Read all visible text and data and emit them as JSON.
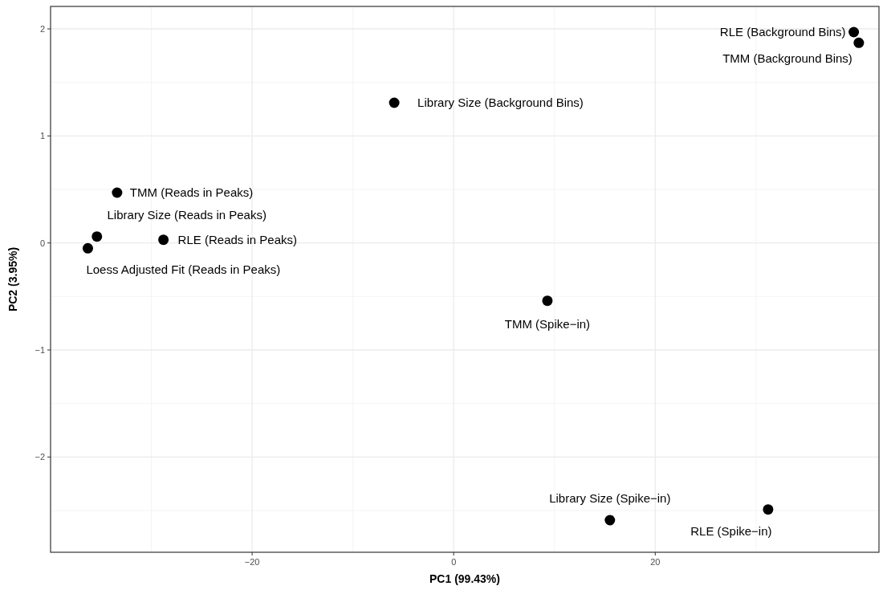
{
  "chart_data": {
    "type": "scatter",
    "xlabel": "PC1 (99.43%)",
    "ylabel": "PC2 (3.95%)",
    "xlim": [
      -40,
      42.2
    ],
    "ylim": [
      -2.89,
      2.21
    ],
    "xticks": [
      -20,
      0,
      20
    ],
    "yticks": [
      -2,
      -1,
      0,
      1,
      2
    ],
    "grid": true,
    "marker": "circle",
    "series": [
      {
        "color": "#000000",
        "x": [
          39.7,
          40.2,
          -5.9,
          -33.4,
          -35.4,
          -36.3,
          -28.8,
          9.3,
          15.5,
          31.2
        ],
        "values": [
          1.97,
          1.87,
          1.31,
          0.47,
          0.06,
          -0.05,
          0.03,
          -0.54,
          -2.59,
          -2.49
        ],
        "value_labels": [
          "RLE (Background Bins)",
          "TMM (Background Bins)",
          "Library Size (Background Bins)",
          "TMM (Reads in Peaks)",
          "Library Size (Reads in Peaks)",
          "Loess Adjusted Fit (Reads in Peaks)",
          "RLE (Reads in Peaks)",
          "TMM (Spike−in)",
          "Library Size (Spike−in)",
          "RLE (Spike−in)"
        ]
      }
    ]
  }
}
